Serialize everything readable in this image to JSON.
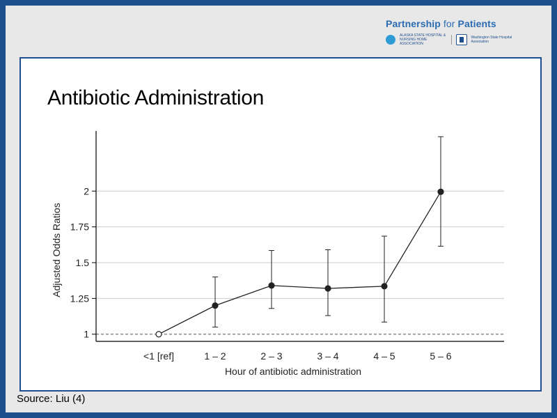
{
  "branding": {
    "title_main": "Partnership",
    "title_for": "for",
    "title_end": "Patients",
    "org_1": "ALASKA STATE HOSPITAL & NURSING HOME ASSOCIATION",
    "org_2": "Washington State Hospital Association",
    "colors": {
      "brand_blue": "#2b6cb3",
      "frame_blue": "#1f4e8c"
    }
  },
  "slide": {
    "title": "Antibiotic Administration",
    "source": "Source: Liu (4)"
  },
  "chart_data": {
    "type": "line",
    "categories": [
      "<1 [ref]",
      "1 – 2",
      "2 – 3",
      "3 – 4",
      "4 – 5",
      "5 – 6"
    ],
    "series": [
      {
        "values": [
          1.0,
          1.2,
          1.34,
          1.32,
          1.335,
          1.995
        ],
        "ci_low": [
          null,
          1.05,
          1.18,
          1.13,
          1.085,
          1.615
        ],
        "ci_high": [
          null,
          1.4,
          1.585,
          1.59,
          1.685,
          2.38
        ]
      }
    ],
    "reference": {
      "index": 0,
      "marker": "open-circle"
    },
    "reference_line": 1.0,
    "xlabel": "Hour of antibiotic administration",
    "ylabel": "Adjusted Odds Ratios",
    "yticks": [
      1,
      1.25,
      1.5,
      1.75,
      2
    ],
    "ytick_labels": [
      "1",
      "1.25",
      "1.5",
      "1.75",
      "2"
    ],
    "ylim": [
      0.95,
      2.42
    ],
    "grid": "horizontal",
    "legend": "none",
    "colors": {
      "line": "#222222",
      "grid": "#cccccc"
    }
  }
}
